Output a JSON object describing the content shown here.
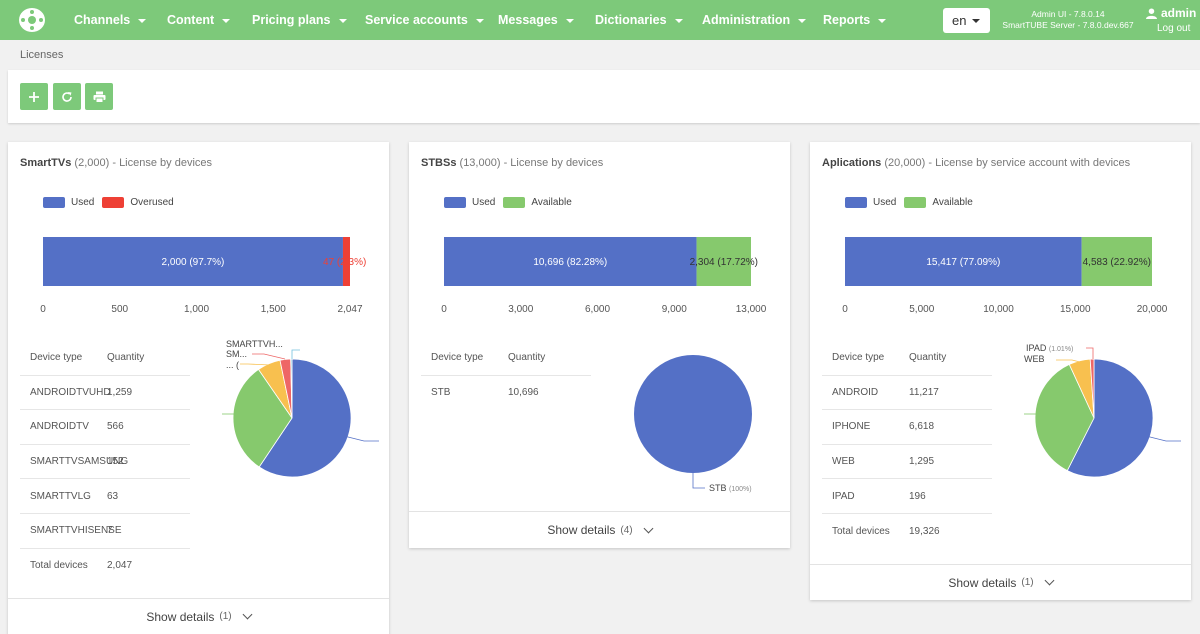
{
  "nav": {
    "items": [
      "Channels",
      "Content",
      "Pricing plans",
      "Service accounts",
      "Messages",
      "Dictionaries",
      "Administration",
      "Reports"
    ],
    "language": "en",
    "version_ui": "Admin UI - 7.8.0.14",
    "version_server": "SmartTUBE Server - 7.8.0.dev.667",
    "user": "admin",
    "logout": "Log out"
  },
  "breadcrumb": "Licenses",
  "colors": {
    "used": "#5470c6",
    "overused": "#ee4035",
    "available": "#86c96d",
    "yellow": "#f8c04f",
    "accent": "#7dc97a"
  },
  "cards": [
    {
      "title": "SmartTVs",
      "count": "(2,000)",
      "subtitle": "- License by devices",
      "legend": [
        "Used",
        "Overused"
      ],
      "bar": {
        "used": 2000,
        "other": 47,
        "used_label": "2,000 (97.7%)",
        "other_label": "47 (2.3%)",
        "max": 2047,
        "ticks": [
          "0",
          "500",
          "1,000",
          "1,500",
          "2,047"
        ]
      },
      "table_header": [
        "Device type",
        "Quantity"
      ],
      "rows": [
        [
          "ANDROIDTVUHD",
          "1,259"
        ],
        [
          "ANDROIDTV",
          "566"
        ],
        [
          "SMARTTVSAMSUNG",
          "152"
        ],
        [
          "SMARTTVLG",
          "63"
        ],
        [
          "SMARTTVHISENSE",
          "7"
        ]
      ],
      "total": [
        "Total devices",
        "2,047"
      ],
      "pie_labels": [
        "SMARTTVH...",
        "SM...",
        "... ("
      ],
      "details": "Show details",
      "details_count": "(1)"
    },
    {
      "title": "STBSs",
      "count": "(13,000)",
      "subtitle": "- License by devices",
      "legend": [
        "Used",
        "Available"
      ],
      "bar": {
        "used": 10696,
        "other": 2304,
        "used_label": "10,696 (82.28%)",
        "other_label": "2,304 (17.72%)",
        "max": 13000,
        "ticks": [
          "0",
          "3,000",
          "6,000",
          "9,000",
          "13,000"
        ]
      },
      "table_header": [
        "Device type",
        "Quantity"
      ],
      "rows": [
        [
          "STB",
          "10,696"
        ]
      ],
      "pie_labels": [
        "STB",
        "(100%)"
      ],
      "details": "Show details",
      "details_count": "(4)"
    },
    {
      "title": "Aplications",
      "count": "(20,000)",
      "subtitle": "- License by service account with devices",
      "legend": [
        "Used",
        "Available"
      ],
      "bar": {
        "used": 15417,
        "other": 4583,
        "used_label": "15,417 (77.09%)",
        "other_label": "4,583 (22.92%)",
        "max": 20000,
        "ticks": [
          "0",
          "5,000",
          "10,000",
          "15,000",
          "20,000"
        ]
      },
      "table_header": [
        "Device type",
        "Quantity"
      ],
      "rows": [
        [
          "ANDROID",
          "11,217"
        ],
        [
          "IPHONE",
          "6,618"
        ],
        [
          "WEB",
          "1,295"
        ],
        [
          "IPAD",
          "196"
        ]
      ],
      "total": [
        "Total devices",
        "19,326"
      ],
      "pie_labels": [
        "IPAD",
        "(1.01%)",
        "WEB"
      ],
      "details": "Show details",
      "details_count": "(1)"
    }
  ]
}
